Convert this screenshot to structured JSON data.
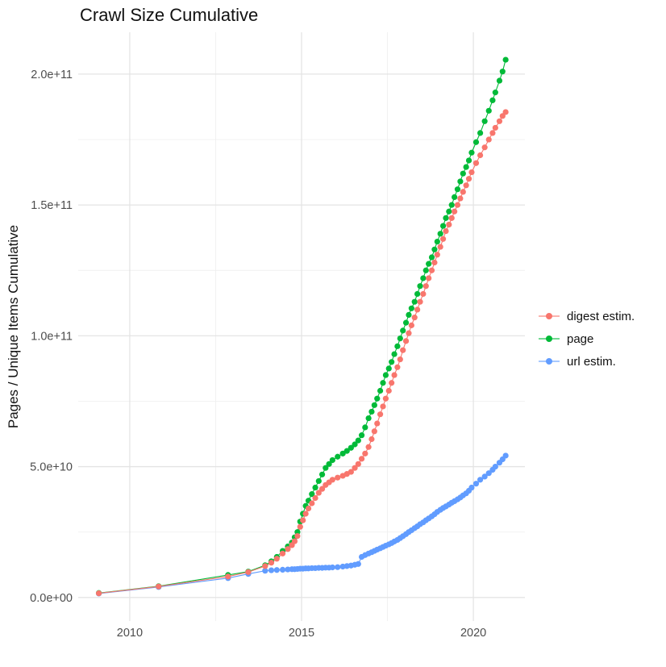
{
  "figure": {
    "title": "Crawl Size Cumulative",
    "y_axis_title": "Pages / Unique Items Cumulative",
    "background_color": "#FFFFFF",
    "grid_major_color": "#E4E4E4",
    "grid_minor_color": "#F0F0F0",
    "tick_label_color": "#4D4D4D"
  },
  "legend": {
    "position": "right",
    "items": [
      {
        "label": "digest estim.",
        "color": "#F8766D"
      },
      {
        "label": "page",
        "color": "#00BA38"
      },
      {
        "label": "url estim.",
        "color": "#619CFF"
      }
    ]
  },
  "chart_data": {
    "type": "line",
    "style": "connected scatter (points + thin lines), ggplot2 look",
    "title": "Crawl Size Cumulative",
    "xlabel": "",
    "ylabel": "Pages / Unique Items Cumulative",
    "y_unit": "pages; point values below are in billions (1e9)",
    "xlim": [
      2008.5,
      2021.5
    ],
    "ylim": [
      -9,
      216
    ],
    "grid": true,
    "legend_position": "right",
    "x_ticks": [
      {
        "value": 2010,
        "label": "2010"
      },
      {
        "value": 2015,
        "label": "2015"
      },
      {
        "value": 2020,
        "label": "2020"
      }
    ],
    "x_minor": [
      2012.5,
      2017.5
    ],
    "y_ticks": [
      {
        "value": 0,
        "label": "0.0e+00"
      },
      {
        "value": 50,
        "label": "5.0e+10"
      },
      {
        "value": 100,
        "label": "1.0e+11"
      },
      {
        "value": 150,
        "label": "1.5e+11"
      },
      {
        "value": 200,
        "label": "2.0e+11"
      }
    ],
    "y_minor": [
      25,
      75,
      125,
      175
    ],
    "series": [
      {
        "name": "digest estim.",
        "color": "#F8766D",
        "points": [
          [
            2009.1,
            1.6
          ],
          [
            2010.84,
            4.2
          ],
          [
            2012.86,
            8.0
          ],
          [
            2013.45,
            9.7
          ],
          [
            2013.94,
            12.0
          ],
          [
            2014.12,
            13.3
          ],
          [
            2014.28,
            14.8
          ],
          [
            2014.45,
            16.8
          ],
          [
            2014.6,
            18.5
          ],
          [
            2014.72,
            20.0
          ],
          [
            2014.8,
            21.5
          ],
          [
            2014.88,
            23.5
          ],
          [
            2014.96,
            27.0
          ],
          [
            2015.04,
            29.5
          ],
          [
            2015.12,
            32.0
          ],
          [
            2015.2,
            34.0
          ],
          [
            2015.3,
            36.0
          ],
          [
            2015.4,
            38.0
          ],
          [
            2015.5,
            40.0
          ],
          [
            2015.6,
            41.5
          ],
          [
            2015.7,
            43.0
          ],
          [
            2015.8,
            44.0
          ],
          [
            2015.9,
            45.0
          ],
          [
            2016.05,
            45.8
          ],
          [
            2016.2,
            46.5
          ],
          [
            2016.32,
            47.2
          ],
          [
            2016.44,
            48.0
          ],
          [
            2016.55,
            49.5
          ],
          [
            2016.65,
            51.0
          ],
          [
            2016.75,
            53.0
          ],
          [
            2016.85,
            55.0
          ],
          [
            2016.95,
            57.5
          ],
          [
            2017.04,
            60.5
          ],
          [
            2017.12,
            63.5
          ],
          [
            2017.2,
            66.5
          ],
          [
            2017.29,
            70.0
          ],
          [
            2017.37,
            73.0
          ],
          [
            2017.45,
            76.0
          ],
          [
            2017.54,
            79.0
          ],
          [
            2017.62,
            82.0
          ],
          [
            2017.7,
            85.0
          ],
          [
            2017.79,
            88.0
          ],
          [
            2017.87,
            91.0
          ],
          [
            2017.95,
            94.5
          ],
          [
            2018.04,
            98.0
          ],
          [
            2018.12,
            101.0
          ],
          [
            2018.2,
            104.0
          ],
          [
            2018.29,
            107.0
          ],
          [
            2018.37,
            110.0
          ],
          [
            2018.45,
            113.0
          ],
          [
            2018.54,
            116.0
          ],
          [
            2018.62,
            119.0
          ],
          [
            2018.7,
            122.0
          ],
          [
            2018.79,
            125.0
          ],
          [
            2018.87,
            128.0
          ],
          [
            2018.95,
            131.0
          ],
          [
            2019.04,
            134.0
          ],
          [
            2019.12,
            137.0
          ],
          [
            2019.2,
            140.0
          ],
          [
            2019.29,
            142.5
          ],
          [
            2019.37,
            145.0
          ],
          [
            2019.45,
            147.5
          ],
          [
            2019.54,
            150.0
          ],
          [
            2019.62,
            152.5
          ],
          [
            2019.7,
            155.0
          ],
          [
            2019.79,
            157.5
          ],
          [
            2019.87,
            160.0
          ],
          [
            2019.95,
            162.5
          ],
          [
            2020.08,
            166.0
          ],
          [
            2020.2,
            169.0
          ],
          [
            2020.33,
            172.0
          ],
          [
            2020.45,
            175.0
          ],
          [
            2020.56,
            177.5
          ],
          [
            2020.64,
            179.5
          ],
          [
            2020.76,
            182.0
          ],
          [
            2020.85,
            184.0
          ],
          [
            2020.94,
            185.5
          ]
        ]
      },
      {
        "name": "page",
        "color": "#00BA38",
        "points": [
          [
            2009.1,
            1.7
          ],
          [
            2010.84,
            4.3
          ],
          [
            2012.86,
            8.6
          ],
          [
            2013.45,
            9.9
          ],
          [
            2013.94,
            12.3
          ],
          [
            2014.12,
            13.8
          ],
          [
            2014.28,
            15.5
          ],
          [
            2014.45,
            17.8
          ],
          [
            2014.6,
            19.5
          ],
          [
            2014.72,
            21.0
          ],
          [
            2014.8,
            23.0
          ],
          [
            2014.88,
            25.0
          ],
          [
            2014.96,
            29.0
          ],
          [
            2015.04,
            32.0
          ],
          [
            2015.12,
            35.0
          ],
          [
            2015.2,
            37.0
          ],
          [
            2015.3,
            39.5
          ],
          [
            2015.4,
            42.0
          ],
          [
            2015.5,
            44.5
          ],
          [
            2015.6,
            47.0
          ],
          [
            2015.7,
            49.5
          ],
          [
            2015.8,
            51.0
          ],
          [
            2015.9,
            52.5
          ],
          [
            2016.05,
            53.8
          ],
          [
            2016.2,
            55.0
          ],
          [
            2016.32,
            56.0
          ],
          [
            2016.44,
            57.2
          ],
          [
            2016.55,
            58.5
          ],
          [
            2016.65,
            60.0
          ],
          [
            2016.75,
            62.0
          ],
          [
            2016.85,
            65.0
          ],
          [
            2016.95,
            68.5
          ],
          [
            2017.04,
            71.0
          ],
          [
            2017.12,
            73.5
          ],
          [
            2017.2,
            76.0
          ],
          [
            2017.29,
            79.0
          ],
          [
            2017.37,
            82.0
          ],
          [
            2017.45,
            85.0
          ],
          [
            2017.54,
            87.5
          ],
          [
            2017.62,
            90.0
          ],
          [
            2017.7,
            93.0
          ],
          [
            2017.79,
            96.0
          ],
          [
            2017.87,
            99.0
          ],
          [
            2017.95,
            102.0
          ],
          [
            2018.04,
            105.0
          ],
          [
            2018.12,
            108.0
          ],
          [
            2018.2,
            110.5
          ],
          [
            2018.29,
            113.0
          ],
          [
            2018.37,
            116.0
          ],
          [
            2018.45,
            119.0
          ],
          [
            2018.54,
            122.0
          ],
          [
            2018.62,
            125.0
          ],
          [
            2018.7,
            127.5
          ],
          [
            2018.79,
            130.0
          ],
          [
            2018.87,
            133.0
          ],
          [
            2018.95,
            136.0
          ],
          [
            2019.04,
            139.0
          ],
          [
            2019.12,
            142.0
          ],
          [
            2019.2,
            145.0
          ],
          [
            2019.29,
            147.5
          ],
          [
            2019.37,
            150.0
          ],
          [
            2019.45,
            153.0
          ],
          [
            2019.54,
            156.0
          ],
          [
            2019.62,
            159.0
          ],
          [
            2019.7,
            162.0
          ],
          [
            2019.79,
            164.5
          ],
          [
            2019.87,
            167.0
          ],
          [
            2019.95,
            170.0
          ],
          [
            2020.08,
            174.0
          ],
          [
            2020.2,
            177.5
          ],
          [
            2020.33,
            182.0
          ],
          [
            2020.45,
            186.0
          ],
          [
            2020.56,
            190.0
          ],
          [
            2020.64,
            193.0
          ],
          [
            2020.76,
            197.5
          ],
          [
            2020.85,
            201.0
          ],
          [
            2020.94,
            205.5
          ]
        ]
      },
      {
        "name": "url estim.",
        "color": "#619CFF",
        "points": [
          [
            2009.1,
            1.5
          ],
          [
            2010.84,
            4.0
          ],
          [
            2012.86,
            7.4
          ],
          [
            2013.45,
            9.0
          ],
          [
            2013.94,
            10.2
          ],
          [
            2014.12,
            10.4
          ],
          [
            2014.28,
            10.5
          ],
          [
            2014.45,
            10.6
          ],
          [
            2014.6,
            10.7
          ],
          [
            2014.72,
            10.8
          ],
          [
            2014.8,
            10.8
          ],
          [
            2014.88,
            10.9
          ],
          [
            2014.96,
            11.0
          ],
          [
            2015.04,
            11.0
          ],
          [
            2015.12,
            11.1
          ],
          [
            2015.2,
            11.1
          ],
          [
            2015.3,
            11.2
          ],
          [
            2015.4,
            11.2
          ],
          [
            2015.5,
            11.3
          ],
          [
            2015.6,
            11.3
          ],
          [
            2015.7,
            11.4
          ],
          [
            2015.8,
            11.4
          ],
          [
            2015.9,
            11.5
          ],
          [
            2016.05,
            11.6
          ],
          [
            2016.2,
            11.8
          ],
          [
            2016.32,
            12.0
          ],
          [
            2016.44,
            12.2
          ],
          [
            2016.55,
            12.5
          ],
          [
            2016.65,
            12.8
          ],
          [
            2016.75,
            15.5
          ],
          [
            2016.85,
            16.2
          ],
          [
            2016.95,
            16.8
          ],
          [
            2017.04,
            17.3
          ],
          [
            2017.12,
            17.8
          ],
          [
            2017.2,
            18.3
          ],
          [
            2017.29,
            18.8
          ],
          [
            2017.37,
            19.3
          ],
          [
            2017.45,
            19.8
          ],
          [
            2017.54,
            20.3
          ],
          [
            2017.62,
            20.8
          ],
          [
            2017.7,
            21.4
          ],
          [
            2017.79,
            22.0
          ],
          [
            2017.87,
            22.7
          ],
          [
            2017.95,
            23.4
          ],
          [
            2018.04,
            24.2
          ],
          [
            2018.12,
            25.0
          ],
          [
            2018.2,
            25.7
          ],
          [
            2018.29,
            26.5
          ],
          [
            2018.37,
            27.2
          ],
          [
            2018.45,
            28.0
          ],
          [
            2018.54,
            28.7
          ],
          [
            2018.62,
            29.5
          ],
          [
            2018.7,
            30.2
          ],
          [
            2018.79,
            31.0
          ],
          [
            2018.87,
            31.8
          ],
          [
            2018.95,
            32.7
          ],
          [
            2019.04,
            33.5
          ],
          [
            2019.12,
            34.2
          ],
          [
            2019.2,
            34.8
          ],
          [
            2019.29,
            35.5
          ],
          [
            2019.37,
            36.2
          ],
          [
            2019.45,
            36.8
          ],
          [
            2019.54,
            37.5
          ],
          [
            2019.62,
            38.2
          ],
          [
            2019.7,
            39.0
          ],
          [
            2019.79,
            39.8
          ],
          [
            2019.87,
            40.8
          ],
          [
            2019.95,
            42.0
          ],
          [
            2020.08,
            43.5
          ],
          [
            2020.2,
            45.0
          ],
          [
            2020.33,
            46.2
          ],
          [
            2020.45,
            47.5
          ],
          [
            2020.56,
            48.8
          ],
          [
            2020.64,
            50.0
          ],
          [
            2020.76,
            51.5
          ],
          [
            2020.85,
            52.8
          ],
          [
            2020.94,
            54.2
          ]
        ]
      }
    ]
  }
}
